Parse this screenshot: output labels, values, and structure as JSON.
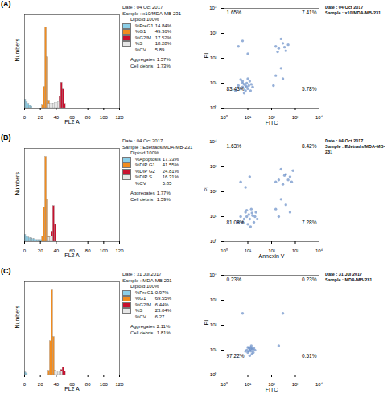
{
  "chart_data": [
    {
      "type": "histogram",
      "panel_label": "(A)",
      "date": "Date : 04 Oct 2017",
      "sample": "Sample : x10/MDA-MB-231",
      "legend_title": "Diploid 100%",
      "x_label": "FL2 A",
      "y_label": "Numbers",
      "bins": [
        0,
        2,
        4,
        6,
        8,
        10,
        12,
        14,
        16,
        18,
        20,
        22,
        24,
        26,
        28,
        30,
        32,
        34,
        36,
        38,
        40,
        42,
        44,
        46,
        48,
        50,
        52,
        54,
        56,
        58,
        60
      ],
      "series": [
        {
          "name": "%PreG1",
          "value_label": "14.84%",
          "color": "#8ccfe8",
          "values": [
            10,
            7,
            5,
            3,
            2,
            0,
            0,
            0,
            0,
            0,
            0,
            0,
            0,
            0,
            0,
            0,
            0,
            0,
            0,
            0,
            0,
            0,
            0,
            0,
            0,
            0,
            0,
            0,
            0,
            0
          ]
        },
        {
          "name": "%G1",
          "value_label": "49.36%",
          "color": "#f28c1e",
          "values": [
            0,
            0,
            0,
            0,
            0,
            0,
            0,
            0,
            0,
            0,
            0,
            4,
            25,
            95,
            60,
            8,
            0,
            0,
            0,
            0,
            0,
            0,
            0,
            0,
            0,
            0,
            0,
            0,
            0,
            0
          ]
        },
        {
          "name": "%G2/M",
          "value_label": "17.52%",
          "color": "#c8102e",
          "values": [
            0,
            0,
            0,
            0,
            0,
            0,
            0,
            0,
            0,
            0,
            0,
            0,
            0,
            0,
            0,
            0,
            0,
            0,
            0,
            0,
            0,
            0,
            14,
            30,
            22,
            5,
            0,
            0,
            0,
            0
          ]
        },
        {
          "name": "%S",
          "value_label": "18.28%",
          "color": "#e6e6e6",
          "values": [
            0,
            0,
            0,
            0,
            0,
            0,
            0,
            0,
            0,
            0,
            0,
            0,
            0,
            0,
            0,
            5,
            5,
            5,
            5,
            6,
            6,
            7,
            0,
            0,
            0,
            0,
            0,
            0,
            0,
            0
          ]
        }
      ],
      "stats": [
        {
          "name": "%CV",
          "value_label": "5.89"
        }
      ],
      "notes": [
        {
          "name": "Aggregates",
          "value_label": "1.57%"
        },
        {
          "name": "Cell debris",
          "value_label": "1.73%"
        }
      ],
      "xlim": [
        0,
        120
      ],
      "xticks": [
        0,
        20,
        40,
        60,
        80,
        100,
        120
      ],
      "ylim": [
        0,
        110
      ],
      "tick_labels": "x"
    },
    {
      "type": "scatter",
      "date": "Date : 04 Oct 2017",
      "sample": "Sample : x10/MDA-MB-231",
      "x_label": "FITC",
      "y_label": "PI",
      "log": true,
      "color": "#6a8fc8",
      "xlim": [
        1,
        10000
      ],
      "ylim": [
        1,
        10000
      ],
      "xticks": [
        {
          "value": 1,
          "label": "10⁰"
        },
        {
          "value": 10,
          "label": "10¹"
        },
        {
          "value": 100,
          "label": "10²"
        },
        {
          "value": 1000,
          "label": "10³"
        },
        {
          "value": 10000,
          "label": "10⁴"
        }
      ],
      "yticks": [
        {
          "value": 1,
          "label": "10⁰"
        },
        {
          "value": 10,
          "label": "10¹"
        },
        {
          "value": 100,
          "label": "10²"
        },
        {
          "value": 1000,
          "label": "10³"
        },
        {
          "value": 10000,
          "label": "10⁴"
        }
      ],
      "quadrants": {
        "upper_left": "1.65%",
        "upper_right": "7.41%",
        "lower_left": "83.43%",
        "lower_right": "5.78%"
      },
      "x": [
        5,
        7,
        9,
        6,
        11,
        8,
        4,
        12,
        10,
        7,
        14,
        6,
        9,
        3,
        16,
        5,
        8,
        13,
        10,
        6,
        200,
        300,
        150,
        400,
        250,
        500,
        180,
        350,
        150,
        300,
        250,
        120,
        4,
        10,
        6
      ],
      "y": [
        6,
        9,
        7,
        12,
        8,
        5,
        8,
        12,
        15,
        4,
        9,
        7,
        10,
        5,
        7,
        14,
        8,
        5,
        6,
        10,
        250,
        400,
        300,
        200,
        600,
        350,
        180,
        280,
        20,
        15,
        40,
        8,
        300,
        150,
        500
      ]
    },
    {
      "type": "histogram",
      "panel_label": "(B)",
      "date": "Date : 04 Oct 2017",
      "sample": "Sample : Edetrads/MDA-MB-231",
      "legend_title": "Diploid 100%",
      "x_label": "FL2 A",
      "y_label": "Numbers",
      "bins": [
        0,
        2,
        4,
        6,
        8,
        10,
        12,
        14,
        16,
        18,
        20,
        22,
        24,
        26,
        28,
        30,
        32,
        34,
        36,
        38,
        40,
        42,
        44,
        46,
        48,
        50,
        52,
        54,
        56,
        58,
        60
      ],
      "series": [
        {
          "name": "%Apoptosis",
          "value_label": "17.33%",
          "color": "#8ccfe8",
          "values": [
            8,
            6,
            5,
            4,
            4,
            3,
            3,
            2,
            2,
            2,
            2,
            0,
            0,
            0,
            0,
            0,
            0,
            0,
            0,
            0,
            0,
            0,
            0,
            0,
            0,
            0,
            0,
            0,
            0,
            0
          ]
        },
        {
          "name": "%DIP G1",
          "value_label": "41.55%",
          "color": "#f28c1e",
          "values": [
            0,
            0,
            0,
            0,
            0,
            0,
            0,
            0,
            0,
            0,
            0,
            6,
            40,
            100,
            50,
            6,
            0,
            0,
            0,
            0,
            0,
            0,
            0,
            0,
            0,
            0,
            0,
            0,
            0,
            0
          ]
        },
        {
          "name": "%DIP G2",
          "value_label": "24.81%",
          "color": "#c8102e",
          "values": [
            0,
            0,
            0,
            0,
            0,
            0,
            0,
            0,
            0,
            0,
            0,
            0,
            0,
            0,
            0,
            0,
            0,
            12,
            42,
            20,
            0,
            0,
            0,
            0,
            0,
            0,
            0,
            0,
            0,
            0
          ]
        },
        {
          "name": "%DIP S",
          "value_label": "16.31%",
          "color": "#e6e6e6",
          "values": [
            0,
            0,
            0,
            0,
            0,
            0,
            0,
            0,
            0,
            0,
            0,
            0,
            0,
            0,
            0,
            5,
            5,
            6,
            0,
            0,
            0,
            0,
            0,
            0,
            0,
            0,
            0,
            0,
            0,
            0
          ]
        }
      ],
      "stats": [
        {
          "name": "%CV",
          "value_label": "5.85"
        }
      ],
      "notes": [
        {
          "name": "Aggregates",
          "value_label": "1.77%"
        },
        {
          "name": "Cell debris",
          "value_label": "1.59%"
        }
      ],
      "xlim": [
        0,
        120
      ],
      "xticks": [
        0,
        20,
        40,
        60,
        80,
        100,
        120
      ],
      "ylim": [
        0,
        110
      ],
      "tick_labels": "x"
    },
    {
      "type": "scatter",
      "date": "Date : 04 Oct 2017",
      "sample": "Sample : Edetrads/MDA-MB-231",
      "x_label": "Annexin V",
      "y_label": "PI",
      "log": true,
      "color": "#6a8fc8",
      "xlim": [
        1,
        10000
      ],
      "ylim": [
        1,
        10000
      ],
      "xticks": [
        {
          "value": 1,
          "label": "10⁰"
        },
        {
          "value": 10,
          "label": "10¹"
        },
        {
          "value": 100,
          "label": "10²"
        },
        {
          "value": 1000,
          "label": "10³"
        },
        {
          "value": 10000,
          "label": "10⁴"
        }
      ],
      "yticks": [
        {
          "value": 1,
          "label": "10⁰"
        },
        {
          "value": 10,
          "label": "10¹"
        },
        {
          "value": 100,
          "label": "10²"
        },
        {
          "value": 1000,
          "label": "10³"
        },
        {
          "value": 10000,
          "label": "10⁴"
        }
      ],
      "quadrants": {
        "upper_left": "1.63%",
        "upper_right": "8.42%",
        "lower_left": "81.08%",
        "lower_right": "7.28%"
      },
      "x": [
        6,
        9,
        12,
        15,
        8,
        20,
        10,
        5,
        14,
        25,
        7,
        11,
        18,
        4,
        9,
        16,
        13,
        22,
        200,
        400,
        300,
        600,
        250,
        800,
        150,
        500,
        350,
        700,
        150,
        400,
        250,
        600,
        200,
        5,
        12,
        8
      ],
      "y": [
        6,
        10,
        8,
        14,
        15,
        10,
        5,
        10,
        20,
        8,
        8,
        12,
        6,
        6,
        18,
        11,
        4,
        15,
        300,
        500,
        200,
        400,
        800,
        700,
        250,
        300,
        450,
        250,
        20,
        30,
        50,
        15,
        10,
        250,
        400,
        150
      ]
    },
    {
      "type": "histogram",
      "panel_label": "(C)",
      "date": "Date : 31 Jul 2017",
      "sample": "Sample : MDA-MB-231",
      "legend_title": "Diploid 100%",
      "x_label": "FL2 A",
      "y_label": "Numbers",
      "bins": [
        0,
        2,
        4,
        6,
        8,
        10,
        12,
        14,
        16,
        18,
        20,
        22,
        24,
        26,
        28,
        30,
        32,
        34,
        36,
        38,
        40,
        42,
        44,
        46,
        48,
        50,
        52,
        54,
        56,
        58,
        60
      ],
      "series": [
        {
          "name": "%PreG1",
          "value_label": "0.97%",
          "color": "#8ccfe8",
          "values": [
            3,
            2,
            0,
            0,
            0,
            0,
            0,
            0,
            0,
            0,
            0,
            0,
            0,
            0,
            0,
            0,
            0,
            0,
            0,
            0,
            0,
            0,
            0,
            0,
            0,
            0,
            0,
            0,
            0,
            0
          ]
        },
        {
          "name": "%G1",
          "value_label": "69.55%",
          "color": "#f28c1e",
          "values": [
            0,
            0,
            0,
            0,
            0,
            0,
            0,
            0,
            0,
            0,
            0,
            0,
            0,
            0,
            0,
            5,
            40,
            100,
            45,
            5,
            0,
            0,
            0,
            0,
            0,
            0,
            0,
            0,
            0,
            0
          ]
        },
        {
          "name": "%G2/M",
          "value_label": "6.44%",
          "color": "#c8102e",
          "values": [
            0,
            0,
            0,
            0,
            0,
            0,
            0,
            0,
            0,
            0,
            0,
            0,
            0,
            0,
            0,
            0,
            0,
            0,
            0,
            0,
            0,
            0,
            0,
            6,
            9,
            4,
            0,
            0,
            0,
            0
          ]
        },
        {
          "name": "%S",
          "value_label": "23.04%",
          "color": "#e6e6e6",
          "values": [
            0,
            0,
            0,
            0,
            0,
            0,
            0,
            0,
            0,
            0,
            0,
            0,
            0,
            0,
            0,
            0,
            0,
            0,
            0,
            4,
            4,
            4,
            4,
            4,
            0,
            0,
            0,
            0,
            0,
            0
          ]
        }
      ],
      "stats": [
        {
          "name": "%CV",
          "value_label": "6.27"
        }
      ],
      "notes": [
        {
          "name": "Aggregates",
          "value_label": "2.11%"
        },
        {
          "name": "Cell debris",
          "value_label": "1.81%"
        }
      ],
      "xlim": [
        0,
        120
      ],
      "xticks": [
        0,
        20,
        40,
        60,
        80,
        100,
        120
      ],
      "ylim": [
        0,
        110
      ],
      "tick_labels": "x"
    },
    {
      "type": "scatter",
      "date": "Date : 31 Jul 2017",
      "sample": "Sample : MDA-MB-231",
      "x_label": "FITC",
      "y_label": "PI",
      "log": true,
      "color": "#6a8fc8",
      "xlim": [
        1,
        10000
      ],
      "ylim": [
        1,
        10000
      ],
      "xticks": [
        {
          "value": 1,
          "label": "10⁰"
        },
        {
          "value": 10,
          "label": "10¹"
        },
        {
          "value": 100,
          "label": "10²"
        },
        {
          "value": 1000,
          "label": "10³"
        },
        {
          "value": 10000,
          "label": "10⁴"
        }
      ],
      "yticks": [
        {
          "value": 1,
          "label": "10⁰"
        },
        {
          "value": 10,
          "label": "10¹"
        },
        {
          "value": 100,
          "label": "10²"
        },
        {
          "value": 1000,
          "label": "10³"
        },
        {
          "value": 10000,
          "label": "10⁴"
        }
      ],
      "quadrants": {
        "upper_left": "0.23%",
        "upper_right": "0.23%",
        "lower_left": "97.22%",
        "lower_right": "0.51%"
      },
      "x": [
        10,
        12,
        14,
        11,
        16,
        13,
        9,
        15,
        18,
        12,
        8,
        20,
        14,
        10,
        17,
        13,
        11,
        15,
        300,
        200,
        6
      ],
      "y": [
        8,
        10,
        9,
        12,
        11,
        13,
        10,
        7,
        12,
        6,
        9,
        10,
        15,
        13,
        8,
        11,
        9,
        12,
        300,
        15,
        300
      ]
    }
  ]
}
